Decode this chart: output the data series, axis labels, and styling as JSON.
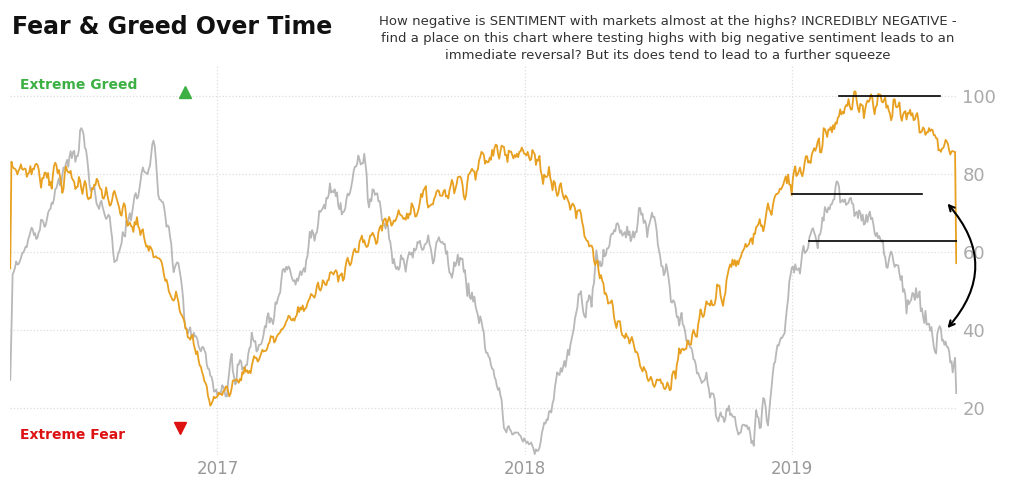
{
  "title": "Fear & Greed Over Time",
  "subtitle": "How negative is SENTIMENT with markets almost at the highs? INCREDIBLY NEGATIVE -\nfind a place on this chart where testing highs with big negative sentiment leads to an\nimmediate reversal? But its does tend to lead to a further squeeze",
  "bg_color": "#ffffff",
  "gray_color": "#b8b8b8",
  "gold_color": "#e8a020",
  "extreme_greed_color": "#3cb043",
  "extreme_fear_color": "#dd1111",
  "axis_label_color": "#aaaaaa",
  "grid_color": "#dddddd",
  "yticks": [
    20,
    40,
    60,
    80,
    100
  ],
  "xtick_labels": [
    "2017",
    "2018",
    "2019"
  ],
  "ylim": [
    8,
    108
  ],
  "xlim": [
    0,
    800
  ]
}
